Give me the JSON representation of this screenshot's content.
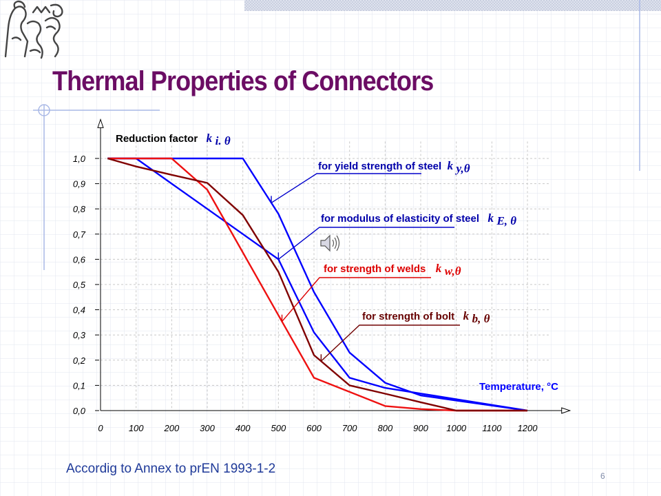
{
  "page": {
    "title": "Thermal Properties of Connectors",
    "footer": "Accordig to Annex to prEN 1993-1-2",
    "slide_number": "6"
  },
  "icons": [
    "ctu-lion-logo",
    "speaker-icon"
  ],
  "colors": {
    "title": "#6b0d64",
    "steel": "#0000ff",
    "welds": "#ee1111",
    "bolt": "#800000",
    "annotation": "#0000aa"
  },
  "chart_data": {
    "type": "line",
    "ylabel": {
      "text": "Reduction factor",
      "symbol": "k",
      "subscript": "i. θ"
    },
    "xlabel": "Temperature, °C",
    "x_ticks": [
      "0",
      "100",
      "200",
      "300",
      "400",
      "500",
      "600",
      "700",
      "800",
      "900",
      "1000",
      "1100",
      "1200"
    ],
    "y_ticks": [
      "0,0",
      "0,1",
      "0,2",
      "0,3",
      "0,4",
      "0,5",
      "0,6",
      "0,7",
      "0,8",
      "0,9",
      "1,0"
    ],
    "xlim": [
      0,
      1300
    ],
    "ylim": [
      0,
      1.1
    ],
    "grid": true,
    "series": [
      {
        "key": "yield",
        "label": "for yield strength of steel",
        "symbol": "k",
        "subscript": "y,θ",
        "color": "#0000ff",
        "x": [
          20,
          100,
          200,
          300,
          400,
          500,
          600,
          700,
          800,
          900,
          1000,
          1100,
          1200
        ],
        "y": [
          1.0,
          1.0,
          1.0,
          1.0,
          1.0,
          0.78,
          0.47,
          0.23,
          0.11,
          0.06,
          0.04,
          0.02,
          0.0
        ],
        "anchor_x": 480
      },
      {
        "key": "modulus",
        "label": "for modulus of elasticity of steel",
        "symbol": "k",
        "subscript": "E, θ",
        "color": "#0000ff",
        "x": [
          20,
          100,
          200,
          300,
          400,
          500,
          600,
          700,
          800,
          900,
          1000,
          1100,
          1200
        ],
        "y": [
          1.0,
          1.0,
          0.9,
          0.8,
          0.7,
          0.6,
          0.31,
          0.13,
          0.09,
          0.0675,
          0.045,
          0.0225,
          0.0
        ],
        "anchor_x": 500
      },
      {
        "key": "welds",
        "label": "for strength of welds",
        "symbol": "k",
        "subscript": "w,θ",
        "color": "#ee1111",
        "x": [
          20,
          100,
          200,
          300,
          400,
          500,
          600,
          700,
          800,
          900,
          1000,
          1100,
          1200
        ],
        "y": [
          1.0,
          1.0,
          1.0,
          0.876,
          0.627,
          0.378,
          0.13,
          0.074,
          0.018,
          0.006,
          0.0,
          0.0,
          0.0
        ],
        "anchor_x": 510
      },
      {
        "key": "bolt",
        "label": "for strength of bolt",
        "symbol": "k",
        "subscript": "b, θ",
        "color": "#800000",
        "x": [
          20,
          100,
          200,
          300,
          400,
          500,
          600,
          700,
          800,
          900,
          1000,
          1100,
          1200
        ],
        "y": [
          1.0,
          0.968,
          0.935,
          0.903,
          0.775,
          0.55,
          0.22,
          0.1,
          0.067,
          0.033,
          0.0,
          0.0,
          0.0
        ],
        "anchor_x": 620
      }
    ]
  }
}
